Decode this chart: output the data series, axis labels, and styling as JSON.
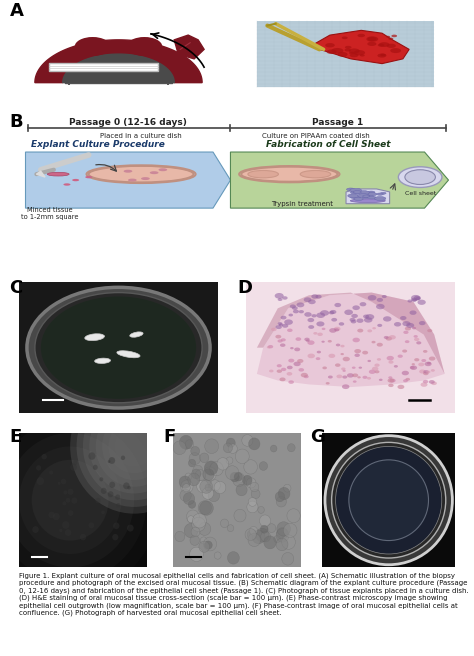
{
  "label_fontsize": 13,
  "label_fontweight": "bold",
  "figure_bg": "#ffffff",
  "passage0_label": "Passage 0 (12-16 days)",
  "passage1_label": "Passage 1",
  "explant_label": "Explant Culture Procedure",
  "fabrication_label": "Fabrication of Cell Sheet",
  "minced_label": "Minced tissue\nto 1-2mm square",
  "placed_label": "Placed in a culture dish",
  "culture_label": "Culture on PIPAAm coated dish",
  "trypsin_label": "Trypsin treatment",
  "cellsheet_label": "Cell sheet",
  "explant_bg": "#b0cce8",
  "fabrication_bg": "#b8d49a",
  "caption_fontsize": 5.0
}
